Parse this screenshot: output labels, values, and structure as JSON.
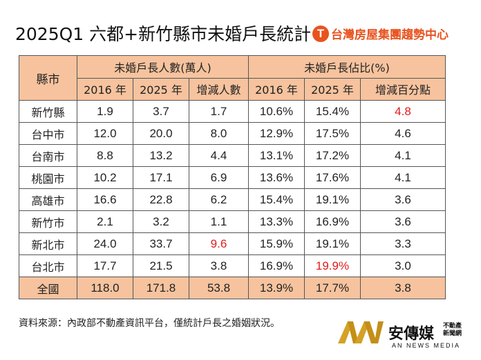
{
  "title": "2025Q1 六都+新竹縣市未婚戶長統計",
  "brand": {
    "logo_letter": "T",
    "name": "台灣房屋集團趨勢中心",
    "color": "#e8531f"
  },
  "table": {
    "corner": "縣市",
    "group1": "未婚戶長人數(萬人)",
    "group2": "未婚戶長佔比(%)",
    "subheaders": [
      "2016 年",
      "2025 年",
      "增減人數",
      "2016 年",
      "2025 年",
      "增減百分點"
    ],
    "rows": [
      {
        "city": "新竹縣",
        "c1": "1.9",
        "c2": "3.7",
        "c3": "1.7",
        "c4": "10.6%",
        "c5": "15.4%",
        "c6": "4.8"
      },
      {
        "city": "台中市",
        "c1": "12.0",
        "c2": "20.0",
        "c3": "8.0",
        "c4": "12.9%",
        "c5": "17.5%",
        "c6": "4.6"
      },
      {
        "city": "台南市",
        "c1": "8.8",
        "c2": "13.2",
        "c3": "4.4",
        "c4": "13.1%",
        "c5": "17.2%",
        "c6": "4.1"
      },
      {
        "city": "桃園市",
        "c1": "10.2",
        "c2": "17.1",
        "c3": "6.9",
        "c4": "13.6%",
        "c5": "17.6%",
        "c6": "4.1"
      },
      {
        "city": "高雄市",
        "c1": "16.6",
        "c2": "22.8",
        "c3": "6.2",
        "c4": "15.4%",
        "c5": "19.1%",
        "c6": "3.6"
      },
      {
        "city": "新竹市",
        "c1": "2.1",
        "c2": "3.2",
        "c3": "1.1",
        "c4": "13.3%",
        "c5": "16.9%",
        "c6": "3.6"
      },
      {
        "city": "新北市",
        "c1": "24.0",
        "c2": "33.7",
        "c3": "9.6",
        "c4": "15.9%",
        "c5": "19.1%",
        "c6": "3.3"
      },
      {
        "city": "台北市",
        "c1": "17.7",
        "c2": "21.5",
        "c3": "3.8",
        "c4": "16.9%",
        "c5": "19.9%",
        "c6": "3.0"
      }
    ],
    "total": {
      "city": "全國",
      "c1": "118.0",
      "c2": "171.8",
      "c3": "53.8",
      "c4": "13.9%",
      "c5": "17.7%",
      "c6": "3.8"
    },
    "highlight_color": "#e11b1b",
    "header_bg": "#f6c39e"
  },
  "source": "資料來源：內政部不動產資訊平台，僅統計戶長之婚姻狀況。",
  "publisher": {
    "name": "安傳媒",
    "tag": "不動產新聞網",
    "tag_line1": "不動產",
    "tag_line2": "新聞網",
    "english": "AN NEWS MEDIA"
  }
}
